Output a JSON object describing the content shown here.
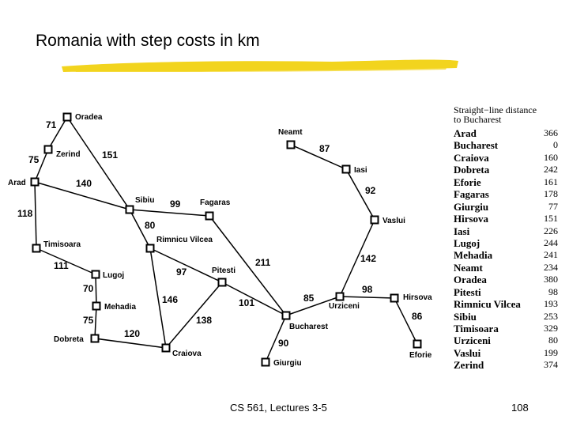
{
  "slide": {
    "title": "Romania with step costs in km",
    "footer": "CS 561,  Lectures 3-5",
    "page_number": "108",
    "highlight_color": "#f2d41e"
  },
  "cities": [
    {
      "name": "Oradea"
    },
    {
      "name": "Zerind"
    },
    {
      "name": "Arad"
    },
    {
      "name": "Timisoara"
    },
    {
      "name": "Lugoj"
    },
    {
      "name": "Mehadia"
    },
    {
      "name": "Dobreta"
    },
    {
      "name": "Craiova"
    },
    {
      "name": "Sibiu"
    },
    {
      "name": "Rimnicu Vilcea"
    },
    {
      "name": "Fagaras"
    },
    {
      "name": "Pitesti"
    },
    {
      "name": "Bucharest"
    },
    {
      "name": "Giurgiu"
    },
    {
      "name": "Urziceni"
    },
    {
      "name": "Hirsova"
    },
    {
      "name": "Eforie"
    },
    {
      "name": "Vaslui"
    },
    {
      "name": "Iasi"
    },
    {
      "name": "Neamt"
    }
  ],
  "roads": [
    {
      "from": "Oradea",
      "to": "Zerind",
      "cost": "71"
    },
    {
      "from": "Zerind",
      "to": "Arad",
      "cost": "75"
    },
    {
      "from": "Oradea",
      "to": "Sibiu",
      "cost": "151"
    },
    {
      "from": "Arad",
      "to": "Sibiu",
      "cost": "140"
    },
    {
      "from": "Arad",
      "to": "Timisoara",
      "cost": "118"
    },
    {
      "from": "Timisoara",
      "to": "Lugoj",
      "cost": "111"
    },
    {
      "from": "Lugoj",
      "to": "Mehadia",
      "cost": "70"
    },
    {
      "from": "Mehadia",
      "to": "Dobreta",
      "cost": "75"
    },
    {
      "from": "Dobreta",
      "to": "Craiova",
      "cost": "120"
    },
    {
      "from": "Sibiu",
      "to": "Fagaras",
      "cost": "99"
    },
    {
      "from": "Sibiu",
      "to": "Rimnicu Vilcea",
      "cost": "80"
    },
    {
      "from": "Rimnicu Vilcea",
      "to": "Pitesti",
      "cost": "97"
    },
    {
      "from": "Rimnicu Vilcea",
      "to": "Craiova",
      "cost": "146"
    },
    {
      "from": "Craiova",
      "to": "Pitesti",
      "cost": "138"
    },
    {
      "from": "Fagaras",
      "to": "Bucharest",
      "cost": "211"
    },
    {
      "from": "Pitesti",
      "to": "Bucharest",
      "cost": "101"
    },
    {
      "from": "Bucharest",
      "to": "Giurgiu",
      "cost": "90"
    },
    {
      "from": "Bucharest",
      "to": "Urziceni",
      "cost": "85"
    },
    {
      "from": "Urziceni",
      "to": "Hirsova",
      "cost": "98"
    },
    {
      "from": "Hirsova",
      "to": "Eforie",
      "cost": "86"
    },
    {
      "from": "Urziceni",
      "to": "Vaslui",
      "cost": "142"
    },
    {
      "from": "Vaslui",
      "to": "Iasi",
      "cost": "92"
    },
    {
      "from": "Iasi",
      "to": "Neamt",
      "cost": "87"
    }
  ],
  "legend": {
    "title_line1": "Straight−line distance",
    "title_line2": "to Bucharest",
    "rows": [
      {
        "city": "Arad",
        "value": "366"
      },
      {
        "city": "Bucharest",
        "value": "0"
      },
      {
        "city": "Craiova",
        "value": "160"
      },
      {
        "city": "Dobreta",
        "value": "242"
      },
      {
        "city": "Eforie",
        "value": "161"
      },
      {
        "city": "Fagaras",
        "value": "178"
      },
      {
        "city": "Giurgiu",
        "value": "77"
      },
      {
        "city": "Hirsova",
        "value": "151"
      },
      {
        "city": "Iasi",
        "value": "226"
      },
      {
        "city": "Lugoj",
        "value": "244"
      },
      {
        "city": "Mehadia",
        "value": "241"
      },
      {
        "city": "Neamt",
        "value": "234"
      },
      {
        "city": "Oradea",
        "value": "380"
      },
      {
        "city": "Pitesti",
        "value": "98"
      },
      {
        "city": "Rimnicu Vilcea",
        "value": "193"
      },
      {
        "city": "Sibiu",
        "value": "253"
      },
      {
        "city": "Timisoara",
        "value": "329"
      },
      {
        "city": "Urziceni",
        "value": "80"
      },
      {
        "city": "Vaslui",
        "value": "199"
      },
      {
        "city": "Zerind",
        "value": "374"
      }
    ]
  }
}
